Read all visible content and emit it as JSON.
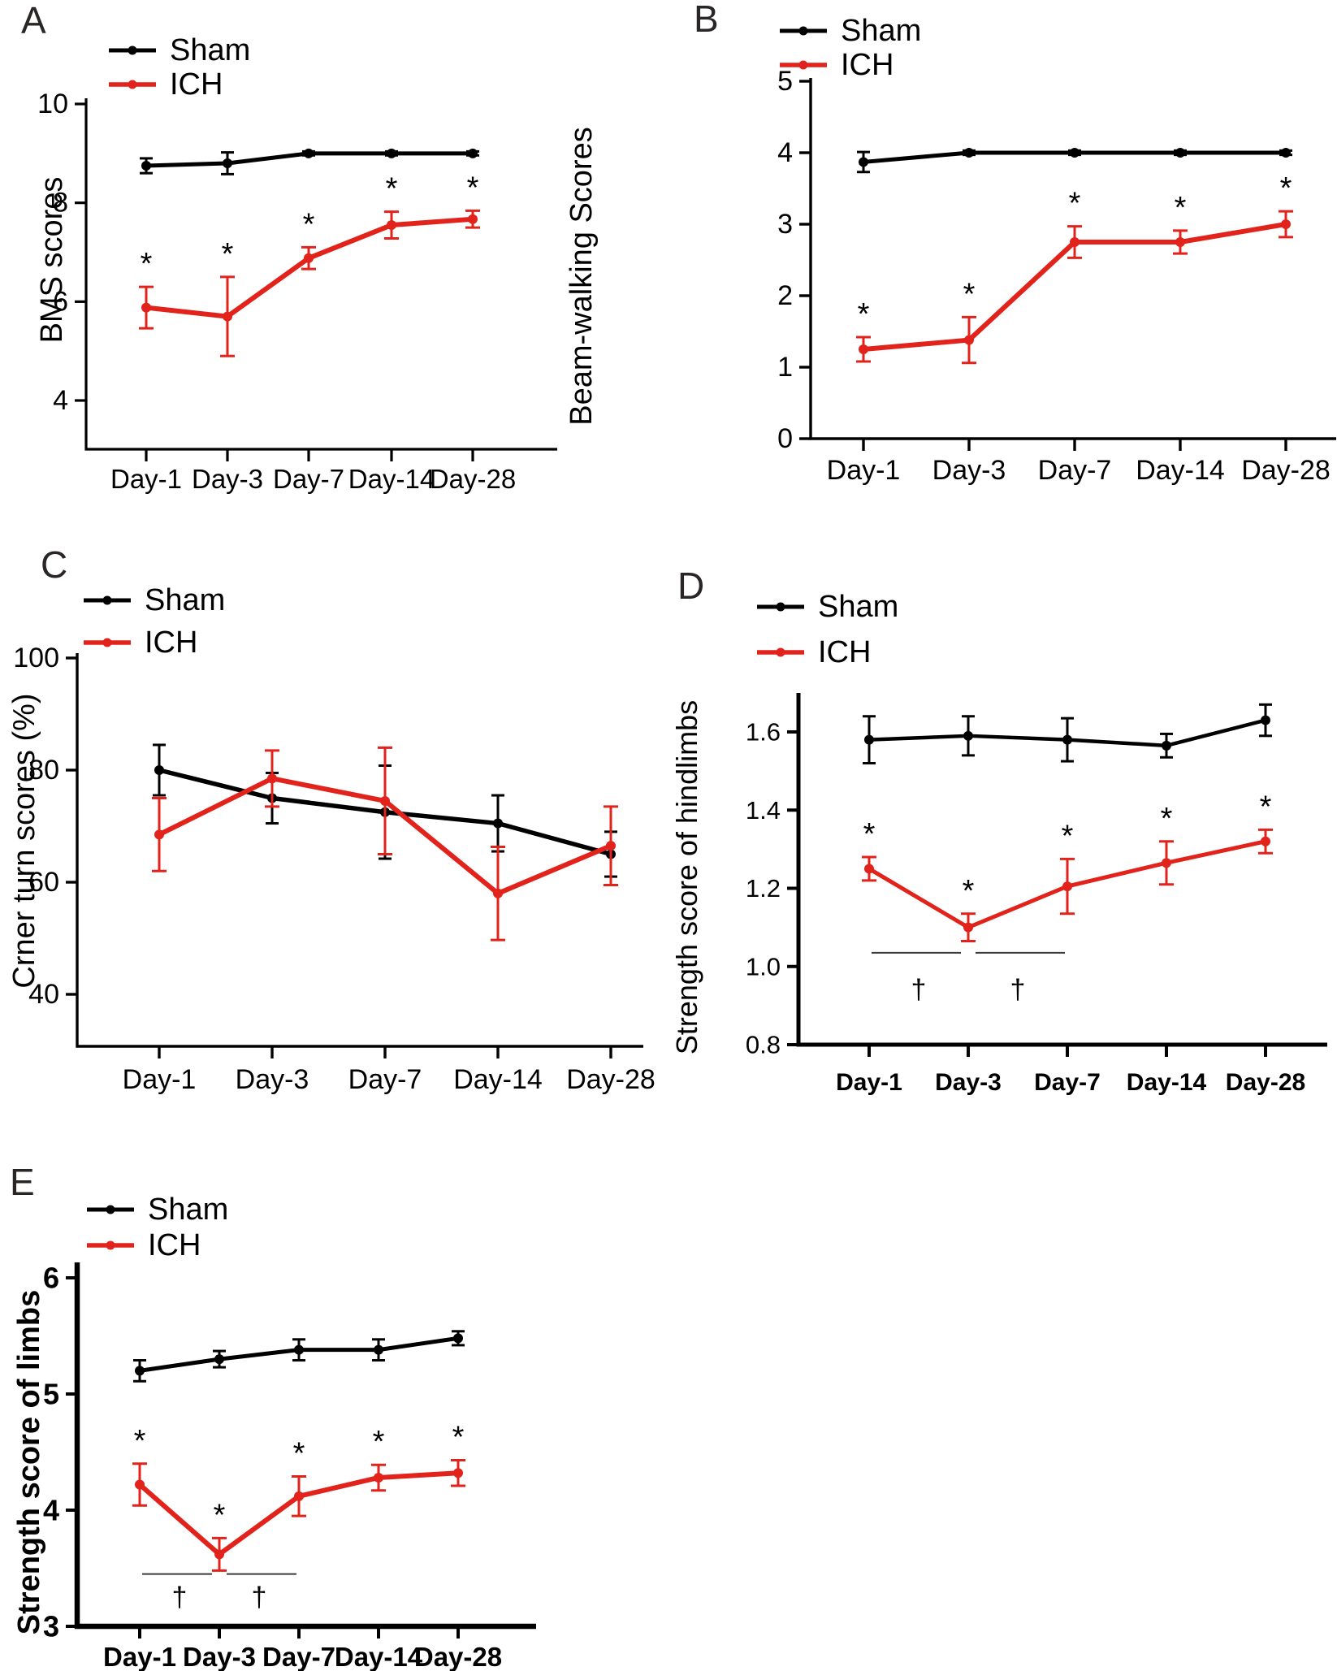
{
  "colors": {
    "sham": "#000000",
    "ich": "#e2231b",
    "annotation": "#231f20"
  },
  "chart_data": [
    {
      "panel_label": "A",
      "type": "line",
      "title": "",
      "xlabel": "",
      "ylabel": "BMS scores",
      "categories": [
        "Day-1",
        "Day-3",
        "Day-7",
        "Day-14",
        "Day-28"
      ],
      "ytick_labels": [
        "4",
        "6",
        "8",
        "10"
      ],
      "ylim": [
        3.0,
        10.1
      ],
      "grid": false,
      "legend_position": "top-left",
      "series": [
        {
          "name": "Sham",
          "color": "sham",
          "values": [
            8.75,
            8.8,
            9.0,
            9.0,
            9.0
          ],
          "errors": [
            0.15,
            0.22,
            0.04,
            0.04,
            0.04
          ]
        },
        {
          "name": "ICH",
          "color": "ich",
          "values": [
            5.88,
            5.7,
            6.88,
            7.55,
            7.67
          ],
          "errors": [
            0.42,
            0.8,
            0.22,
            0.27,
            0.17
          ],
          "significance": [
            "*",
            "*",
            "*",
            "*",
            "*"
          ]
        }
      ]
    },
    {
      "panel_label": "B",
      "type": "line",
      "title": "",
      "xlabel": "",
      "ylabel": "Beam-walking Scores",
      "categories": [
        "Day-1",
        "Day-3",
        "Day-7",
        "Day-14",
        "Day-28"
      ],
      "ytick_labels": [
        "0",
        "1",
        "2",
        "3",
        "4",
        "5"
      ],
      "ylim": [
        0,
        5
      ],
      "grid": false,
      "legend_position": "top-left",
      "series": [
        {
          "name": "Sham",
          "color": "sham",
          "values": [
            3.87,
            4.0,
            4.0,
            4.0,
            4.0
          ],
          "errors": [
            0.14,
            0.03,
            0.03,
            0.03,
            0.03
          ]
        },
        {
          "name": "ICH",
          "color": "ich",
          "values": [
            1.25,
            1.38,
            2.75,
            2.75,
            3.0
          ],
          "errors": [
            0.17,
            0.32,
            0.22,
            0.16,
            0.18
          ],
          "significance": [
            "*",
            "*",
            "*",
            "*",
            "*"
          ]
        }
      ]
    },
    {
      "panel_label": "C",
      "type": "line",
      "title": "",
      "xlabel": "",
      "ylabel": "Crner turn scores (%)",
      "categories": [
        "Day-1",
        "Day-3",
        "Day-7",
        "Day-14",
        "Day-28"
      ],
      "ytick_labels": [
        "40",
        "60",
        "80",
        "100"
      ],
      "ylim": [
        31,
        100.9
      ],
      "grid": false,
      "legend_position": "top-left",
      "series": [
        {
          "name": "Sham",
          "color": "sham",
          "values": [
            80,
            75,
            72.5,
            70.5,
            65
          ],
          "errors": [
            4.5,
            4.5,
            8.3,
            5,
            4
          ]
        },
        {
          "name": "ICH",
          "color": "ich",
          "values": [
            68.5,
            78.5,
            74.5,
            58,
            66.5
          ],
          "errors": [
            6.5,
            5,
            9.5,
            8.3,
            7
          ]
        }
      ]
    },
    {
      "panel_label": "D",
      "type": "line",
      "title": "",
      "xlabel": "",
      "ylabel": "Strength score of hindlimbs",
      "categories": [
        "Day-1",
        "Day-3",
        "Day-7",
        "Day-14",
        "Day-28"
      ],
      "ytick_labels": [
        "0.8",
        "1.0",
        "1.2",
        "1.4",
        "1.6"
      ],
      "ylim": [
        0.8,
        1.69
      ],
      "grid": false,
      "legend_position": "top-left",
      "series": [
        {
          "name": "Sham",
          "color": "sham",
          "values": [
            1.58,
            1.59,
            1.58,
            1.565,
            1.63
          ],
          "errors": [
            0.06,
            0.05,
            0.055,
            0.03,
            0.04
          ]
        },
        {
          "name": "ICH",
          "color": "ich",
          "values": [
            1.25,
            1.1,
            1.205,
            1.265,
            1.32
          ],
          "errors": [
            0.03,
            0.035,
            0.07,
            0.055,
            0.03
          ],
          "significance": [
            "*",
            "*",
            "*",
            "*",
            "*"
          ]
        }
      ],
      "comparisons": [
        {
          "between": [
            "Day-1",
            "Day-3"
          ],
          "symbol": "†"
        },
        {
          "between": [
            "Day-3",
            "Day-7"
          ],
          "symbol": "†"
        }
      ]
    },
    {
      "panel_label": "E",
      "type": "line",
      "title": "",
      "xlabel": "",
      "ylabel": "Strength score of limbs",
      "categories": [
        "Day-1",
        "Day-3",
        "Day-7",
        "Day-14",
        "Day-28"
      ],
      "ytick_labels": [
        "3",
        "4",
        "5",
        "6"
      ],
      "ylim": [
        3,
        6
      ],
      "grid": false,
      "legend_position": "top-left",
      "series": [
        {
          "name": "Sham",
          "color": "sham",
          "values": [
            5.2,
            5.3,
            5.38,
            5.38,
            5.48
          ],
          "errors": [
            0.09,
            0.07,
            0.09,
            0.09,
            0.06
          ]
        },
        {
          "name": "ICH",
          "color": "ich",
          "values": [
            4.22,
            3.62,
            4.12,
            4.28,
            4.32
          ],
          "errors": [
            0.18,
            0.14,
            0.17,
            0.11,
            0.11
          ],
          "significance": [
            "*",
            "*",
            "*",
            "*",
            "*"
          ]
        }
      ],
      "comparisons": [
        {
          "between": [
            "Day-1",
            "Day-3"
          ],
          "symbol": "†"
        },
        {
          "between": [
            "Day-3",
            "Day-7"
          ],
          "symbol": "†"
        }
      ]
    }
  ]
}
